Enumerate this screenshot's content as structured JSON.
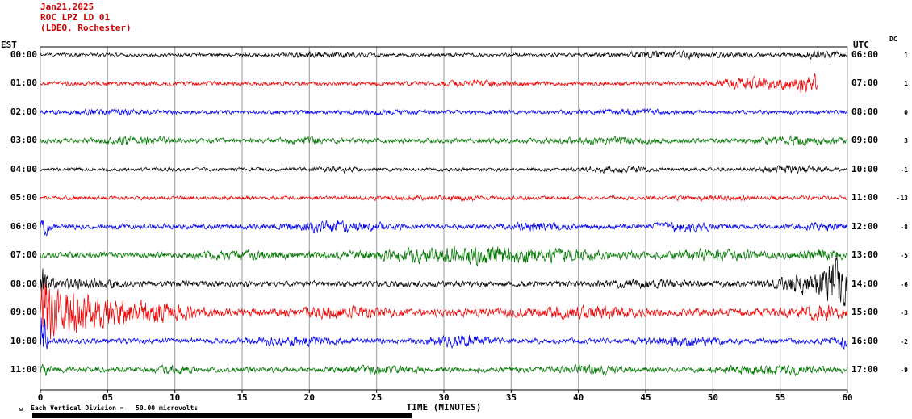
{
  "header": {
    "date": "Jan21,2025",
    "station": "ROC LPZ LD 01",
    "network": "(LDEO, Rochester)"
  },
  "axes": {
    "left_label": "EST",
    "right_label": "UTC",
    "dc_label": "DC"
  },
  "footer": {
    "scale_note": "Each Vertical Division =   50.00 microvolts",
    "watermark": "w"
  },
  "colors": {
    "header_text": "#cc0000",
    "grid": "#999999",
    "axis": "#000000",
    "black_trace": "#000000",
    "red_trace": "#ee0000",
    "blue_trace": "#0000ee",
    "green_trace": "#007700"
  },
  "chart_data": {
    "type": "line",
    "title": "ROC LPZ LD 01 (LDEO, Rochester) helicorder Jan21,2025",
    "xlabel": "TIME (MINUTES)",
    "ylabel": "",
    "x_range_minutes": [
      0,
      60
    ],
    "x_tick_step_minutes": 5,
    "x_ticks": [
      "0",
      "05",
      "10",
      "15",
      "20",
      "25",
      "30",
      "35",
      "40",
      "45",
      "50",
      "55",
      "60"
    ],
    "grid": true,
    "vertical_division_microvolts": 50.0,
    "rows": [
      {
        "est": "00:00",
        "utc": "06:00",
        "dc": "1",
        "color": "#000000",
        "base_amp": 1.8,
        "bursts": [
          [
            21,
            1.5,
            2
          ],
          [
            47,
            3,
            2.2
          ],
          [
            58,
            1.5,
            2
          ]
        ]
      },
      {
        "est": "01:00",
        "utc": "07:00",
        "dc": "1",
        "color": "#ee0000",
        "base_amp": 2.2,
        "end_min": 57.8,
        "bursts": [
          [
            33,
            2,
            1.5
          ],
          [
            52,
            1,
            3
          ],
          [
            55.5,
            2.5,
            4
          ],
          [
            57.3,
            1,
            5
          ]
        ]
      },
      {
        "est": "02:00",
        "utc": "08:00",
        "dc": "0",
        "color": "#0000ee",
        "base_amp": 2.0,
        "bursts": [
          [
            5,
            2,
            1.5
          ],
          [
            25,
            2,
            1
          ],
          [
            44,
            2,
            1.5
          ]
        ]
      },
      {
        "est": "03:00",
        "utc": "09:00",
        "dc": "3",
        "color": "#007700",
        "base_amp": 2.4,
        "bursts": [
          [
            7,
            1.5,
            3
          ],
          [
            20,
            1,
            2
          ],
          [
            42,
            2,
            2
          ],
          [
            56,
            2,
            2.5
          ]
        ]
      },
      {
        "est": "04:00",
        "utc": "10:00",
        "dc": "-1",
        "color": "#000000",
        "base_amp": 1.8,
        "bursts": [
          [
            22,
            1,
            1.5
          ],
          [
            43,
            1.5,
            2.5
          ],
          [
            56,
            1.5,
            2.5
          ]
        ]
      },
      {
        "est": "05:00",
        "utc": "11:00",
        "dc": "-13",
        "color": "#ee0000",
        "base_amp": 1.9,
        "bursts": [
          [
            30,
            3,
            1
          ],
          [
            50,
            2,
            1
          ]
        ]
      },
      {
        "est": "06:00",
        "utc": "12:00",
        "dc": "-8",
        "color": "#0000ee",
        "base_amp": 2.6,
        "bursts": [
          [
            0.3,
            0.3,
            6
          ],
          [
            22,
            2.5,
            3.5
          ],
          [
            37,
            1.5,
            2.5
          ],
          [
            48,
            1.5,
            2.5
          ],
          [
            58,
            1,
            2
          ]
        ]
      },
      {
        "est": "07:00",
        "utc": "13:00",
        "dc": "-5",
        "color": "#007700",
        "base_amp": 3.2,
        "bursts": [
          [
            15,
            2,
            2
          ],
          [
            28,
            3,
            4
          ],
          [
            33,
            2,
            5
          ],
          [
            38,
            3,
            4
          ],
          [
            50,
            2,
            3
          ],
          [
            58,
            1,
            3
          ]
        ]
      },
      {
        "est": "08:00",
        "utc": "14:00",
        "dc": "-6",
        "color": "#000000",
        "base_amp": 3.0,
        "bursts": [
          [
            0.2,
            0.4,
            12
          ],
          [
            3,
            2,
            3
          ],
          [
            45,
            2,
            2
          ],
          [
            57,
            1.5,
            8
          ],
          [
            59.3,
            0.8,
            22
          ]
        ]
      },
      {
        "est": "09:00",
        "utc": "15:00",
        "dc": "-3",
        "color": "#ee0000",
        "base_amp": 4.0,
        "bursts": [
          [
            0.3,
            0.5,
            25
          ],
          [
            2,
            1.5,
            14
          ],
          [
            5,
            2.5,
            8
          ],
          [
            9,
            2,
            5
          ],
          [
            22,
            2,
            3
          ],
          [
            40,
            3,
            3
          ],
          [
            58,
            1.5,
            4
          ]
        ]
      },
      {
        "est": "10:00",
        "utc": "16:00",
        "dc": "-2",
        "color": "#0000ee",
        "base_amp": 2.6,
        "bursts": [
          [
            0.15,
            0.25,
            30
          ],
          [
            19,
            2,
            3
          ],
          [
            31,
            1.5,
            4
          ],
          [
            48,
            2,
            3
          ],
          [
            59.5,
            0.5,
            6
          ]
        ]
      },
      {
        "est": "11:00",
        "utc": "17:00",
        "dc": "-9",
        "color": "#007700",
        "base_amp": 2.8,
        "bursts": [
          [
            0.2,
            0.3,
            4
          ],
          [
            10,
            1,
            2
          ],
          [
            25,
            2,
            2
          ],
          [
            41,
            1.5,
            3
          ],
          [
            54,
            2.5,
            3
          ]
        ]
      }
    ]
  }
}
